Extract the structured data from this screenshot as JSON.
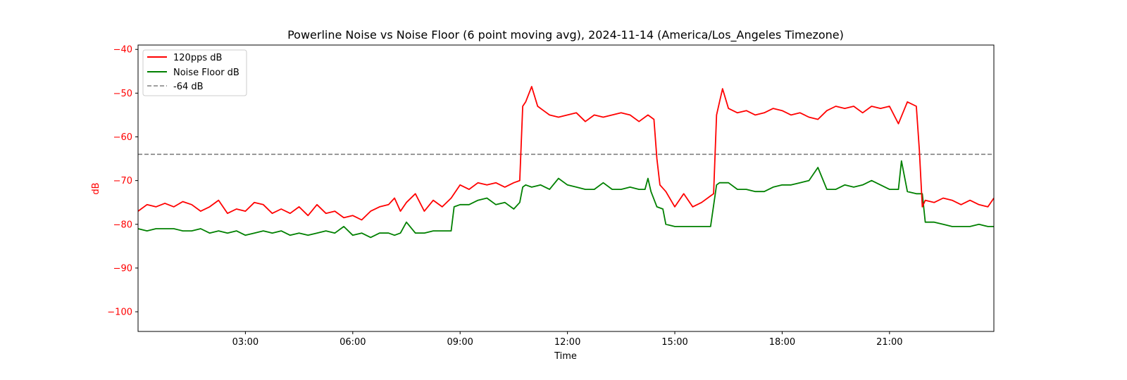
{
  "chart_data": {
    "type": "line",
    "title": "Powerline Noise vs Noise Floor (6 point moving avg), 2024-11-14 (America/Los_Angeles Timezone)",
    "xlabel": "Time",
    "ylabel": "dB",
    "ylabel_color": "#ff0000",
    "xlim": [
      "00:00",
      "23:55"
    ],
    "ylim": [
      -104.5,
      -39
    ],
    "x_ticks": [
      "03:00",
      "06:00",
      "09:00",
      "12:00",
      "15:00",
      "18:00",
      "21:00"
    ],
    "y_ticks": [
      -40,
      -50,
      -60,
      -70,
      -80,
      -90,
      -100
    ],
    "y_tick_labels": [
      "−40",
      "−50",
      "−60",
      "−70",
      "−80",
      "−90",
      "−100"
    ],
    "y_tick_color": "#ff0000",
    "grid": false,
    "legend_position": "top-left",
    "series": [
      {
        "name": "120pps dB",
        "color": "#ff0000",
        "x": [
          "00:00",
          "00:15",
          "00:30",
          "00:45",
          "01:00",
          "01:15",
          "01:30",
          "01:45",
          "02:00",
          "02:15",
          "02:30",
          "02:45",
          "03:00",
          "03:15",
          "03:30",
          "03:45",
          "04:00",
          "04:15",
          "04:30",
          "04:45",
          "05:00",
          "05:15",
          "05:30",
          "05:45",
          "06:00",
          "06:15",
          "06:30",
          "06:45",
          "07:00",
          "07:10",
          "07:20",
          "07:30",
          "07:45",
          "08:00",
          "08:15",
          "08:30",
          "08:45",
          "09:00",
          "09:15",
          "09:30",
          "09:45",
          "10:00",
          "10:15",
          "10:30",
          "10:40",
          "10:45",
          "10:50",
          "11:00",
          "11:10",
          "11:20",
          "11:30",
          "11:45",
          "12:00",
          "12:15",
          "12:30",
          "12:45",
          "13:00",
          "13:15",
          "13:30",
          "13:45",
          "14:00",
          "14:15",
          "14:25",
          "14:30",
          "14:35",
          "14:45",
          "15:00",
          "15:15",
          "15:30",
          "15:45",
          "16:00",
          "16:05",
          "16:10",
          "16:15",
          "16:20",
          "16:30",
          "16:45",
          "17:00",
          "17:15",
          "17:30",
          "17:45",
          "18:00",
          "18:15",
          "18:30",
          "18:45",
          "19:00",
          "19:15",
          "19:30",
          "19:45",
          "20:00",
          "20:15",
          "20:30",
          "20:45",
          "21:00",
          "21:15",
          "21:30",
          "21:45",
          "21:50",
          "21:55",
          "22:00",
          "22:15",
          "22:30",
          "22:45",
          "23:00",
          "23:15",
          "23:30",
          "23:45",
          "23:55"
        ],
        "values": [
          -77,
          -75.5,
          -76,
          -75.2,
          -76,
          -74.8,
          -75.5,
          -77,
          -76,
          -74.5,
          -77.5,
          -76.5,
          -77,
          -75,
          -75.5,
          -77.5,
          -76.5,
          -77.5,
          -76,
          -78,
          -75.5,
          -77.5,
          -77,
          -78.5,
          -78,
          -79,
          -77,
          -76,
          -75.5,
          -74,
          -77,
          -75,
          -73,
          -77,
          -74.5,
          -76,
          -74,
          -71,
          -72,
          -70.5,
          -71,
          -70.5,
          -71.5,
          -70.5,
          -70,
          -53,
          -52,
          -48.5,
          -53,
          -54,
          -55,
          -55.5,
          -55,
          -54.5,
          -56.5,
          -55,
          -55.5,
          -55,
          -54.5,
          -55,
          -56.5,
          -55,
          -56,
          -65,
          -71,
          -72.5,
          -76,
          -73,
          -76,
          -75,
          -73.5,
          -73,
          -55,
          -52,
          -49,
          -53.5,
          -54.5,
          -54,
          -55,
          -54.5,
          -53.5,
          -54,
          -55,
          -54.5,
          -55.5,
          -56,
          -54,
          -53,
          -53.5,
          -53,
          -54.5,
          -53,
          -53.5,
          -53,
          -57,
          -52,
          -53,
          -63,
          -76,
          -74.5,
          -75,
          -74,
          -74.5,
          -75.5,
          -74.5,
          -75.5,
          -76,
          -74
        ]
      },
      {
        "name": "Noise Floor dB",
        "color": "#008000",
        "x": [
          "00:00",
          "00:15",
          "00:30",
          "00:45",
          "01:00",
          "01:15",
          "01:30",
          "01:45",
          "02:00",
          "02:15",
          "02:30",
          "02:45",
          "03:00",
          "03:15",
          "03:30",
          "03:45",
          "04:00",
          "04:15",
          "04:30",
          "04:45",
          "05:00",
          "05:15",
          "05:30",
          "05:45",
          "06:00",
          "06:15",
          "06:30",
          "06:45",
          "07:00",
          "07:10",
          "07:20",
          "07:30",
          "07:45",
          "08:00",
          "08:15",
          "08:30",
          "08:45",
          "08:50",
          "09:00",
          "09:15",
          "09:30",
          "09:45",
          "10:00",
          "10:15",
          "10:30",
          "10:40",
          "10:45",
          "10:50",
          "11:00",
          "11:15",
          "11:30",
          "11:45",
          "12:00",
          "12:15",
          "12:30",
          "12:45",
          "13:00",
          "13:15",
          "13:30",
          "13:45",
          "14:00",
          "14:10",
          "14:15",
          "14:20",
          "14:30",
          "14:40",
          "14:45",
          "15:00",
          "15:15",
          "15:30",
          "15:45",
          "16:00",
          "16:10",
          "16:15",
          "16:30",
          "16:45",
          "17:00",
          "17:15",
          "17:30",
          "17:45",
          "18:00",
          "18:15",
          "18:30",
          "18:45",
          "19:00",
          "19:15",
          "19:30",
          "19:45",
          "20:00",
          "20:15",
          "20:30",
          "20:45",
          "21:00",
          "21:15",
          "21:20",
          "21:30",
          "21:45",
          "21:55",
          "22:00",
          "22:15",
          "22:30",
          "22:45",
          "23:00",
          "23:15",
          "23:30",
          "23:45",
          "23:55"
        ],
        "values": [
          -81,
          -81.5,
          -81,
          -81,
          -81,
          -81.5,
          -81.5,
          -81,
          -82,
          -81.5,
          -82,
          -81.5,
          -82.5,
          -82,
          -81.5,
          -82,
          -81.5,
          -82.5,
          -82,
          -82.5,
          -82,
          -81.5,
          -82,
          -80.5,
          -82.5,
          -82,
          -83,
          -82,
          -82,
          -82.5,
          -82,
          -79.5,
          -82,
          -82,
          -81.5,
          -81.5,
          -81.5,
          -76,
          -75.5,
          -75.5,
          -74.5,
          -74,
          -75.5,
          -75,
          -76.5,
          -75,
          -71.5,
          -71,
          -71.5,
          -71,
          -72,
          -69.5,
          -71,
          -71.5,
          -72,
          -72,
          -70.5,
          -72,
          -72,
          -71.5,
          -72,
          -72,
          -69.5,
          -72.5,
          -76,
          -76.5,
          -80,
          -80.5,
          -80.5,
          -80.5,
          -80.5,
          -80.5,
          -71,
          -70.5,
          -70.5,
          -72,
          -72,
          -72.5,
          -72.5,
          -71.5,
          -71,
          -71,
          -70.5,
          -70,
          -67,
          -72,
          -72,
          -71,
          -71.5,
          -71,
          -70,
          -71,
          -72,
          -72,
          -65.5,
          -72.5,
          -73,
          -73,
          -79.5,
          -79.5,
          -80,
          -80.5,
          -80.5,
          -80.5,
          -80,
          -80.5,
          -80.5
        ]
      },
      {
        "name": "-64 dB",
        "color": "#808080",
        "dashed": true,
        "x": [
          "00:00",
          "23:55"
        ],
        "values": [
          -64,
          -64
        ]
      }
    ]
  }
}
